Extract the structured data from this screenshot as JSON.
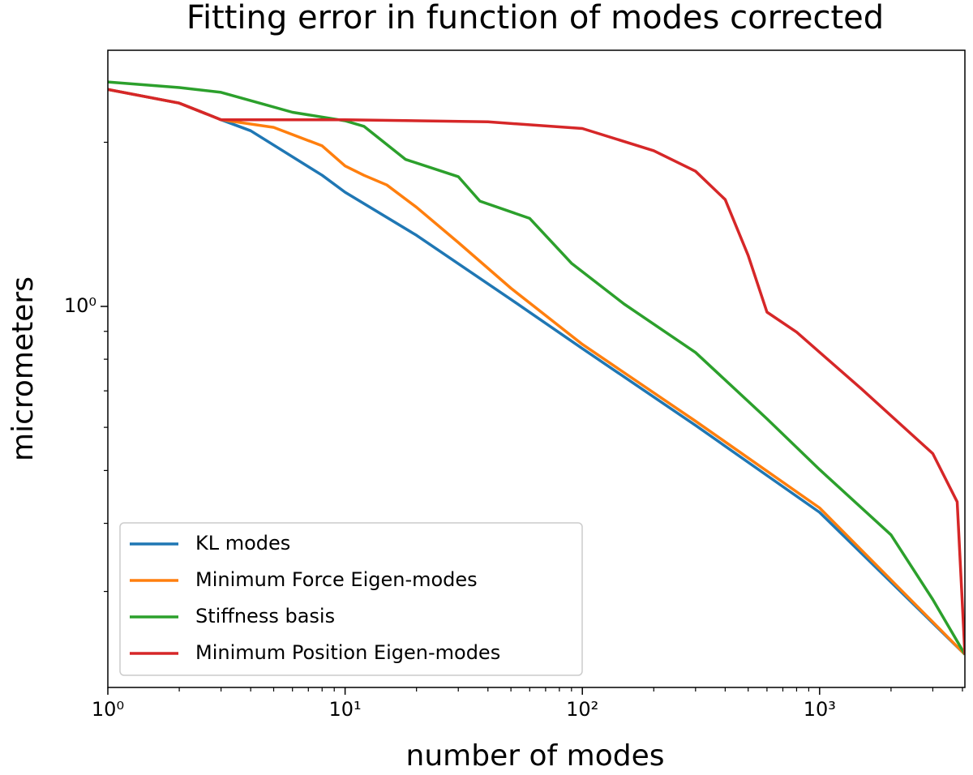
{
  "chart_data": {
    "type": "line",
    "title": "Fitting error in function of modes corrected",
    "xlabel": "number of modes",
    "ylabel": "micrometers",
    "xscale": "log",
    "yscale": "log",
    "xlim": [
      1,
      4096
    ],
    "ylim": [
      0.2,
      2.95
    ],
    "xticks": [
      {
        "value": 1,
        "label": "10⁰"
      },
      {
        "value": 10,
        "label": "10¹"
      },
      {
        "value": 100,
        "label": "10²"
      },
      {
        "value": 1000,
        "label": "10³"
      }
    ],
    "xminorticks": [
      2,
      3,
      4,
      5,
      6,
      7,
      8,
      9,
      20,
      30,
      40,
      50,
      60,
      70,
      80,
      90,
      200,
      300,
      400,
      500,
      600,
      700,
      800,
      900,
      2000,
      3000,
      4000
    ],
    "yticks": [
      {
        "value": 1,
        "label": "10⁰"
      }
    ],
    "yminorticks": [
      0.3,
      0.4,
      0.5,
      0.6,
      0.7,
      0.8,
      0.9,
      2
    ],
    "legend": "lower left",
    "series": [
      {
        "name": "KL modes",
        "color": "#1f77b4",
        "x": [
          1,
          2,
          3,
          4,
          8,
          10,
          20,
          50,
          100,
          300,
          1000,
          4096
        ],
        "values": [
          2.5,
          2.36,
          2.2,
          2.1,
          1.74,
          1.62,
          1.35,
          1.03,
          0.837,
          0.605,
          0.419,
          0.23
        ]
      },
      {
        "name": "Minimum Force Eigen-modes",
        "color": "#ff7f0e",
        "x": [
          1,
          2,
          3,
          5,
          8,
          10,
          12,
          15,
          20,
          30,
          50,
          100,
          300,
          1000,
          4096
        ],
        "values": [
          2.5,
          2.36,
          2.2,
          2.13,
          1.97,
          1.81,
          1.74,
          1.67,
          1.52,
          1.31,
          1.08,
          0.852,
          0.616,
          0.427,
          0.23
        ]
      },
      {
        "name": "Stiffness basis",
        "color": "#2ca02c",
        "x": [
          1,
          2,
          3,
          6,
          10,
          12,
          18,
          30,
          37,
          60,
          90,
          150,
          300,
          600,
          1000,
          2000,
          3000,
          4096
        ],
        "values": [
          2.58,
          2.52,
          2.47,
          2.27,
          2.19,
          2.14,
          1.86,
          1.73,
          1.56,
          1.45,
          1.2,
          1.01,
          0.823,
          0.622,
          0.502,
          0.381,
          0.29,
          0.23
        ]
      },
      {
        "name": "Minimum Position Eigen-modes",
        "color": "#d62728",
        "x": [
          1,
          2,
          3,
          10,
          40,
          100,
          200,
          300,
          400,
          500,
          600,
          800,
          1500,
          3000,
          3800,
          4096
        ],
        "values": [
          2.5,
          2.36,
          2.2,
          2.2,
          2.18,
          2.12,
          1.93,
          1.77,
          1.57,
          1.24,
          0.976,
          0.897,
          0.706,
          0.537,
          0.438,
          0.23
        ]
      }
    ]
  }
}
